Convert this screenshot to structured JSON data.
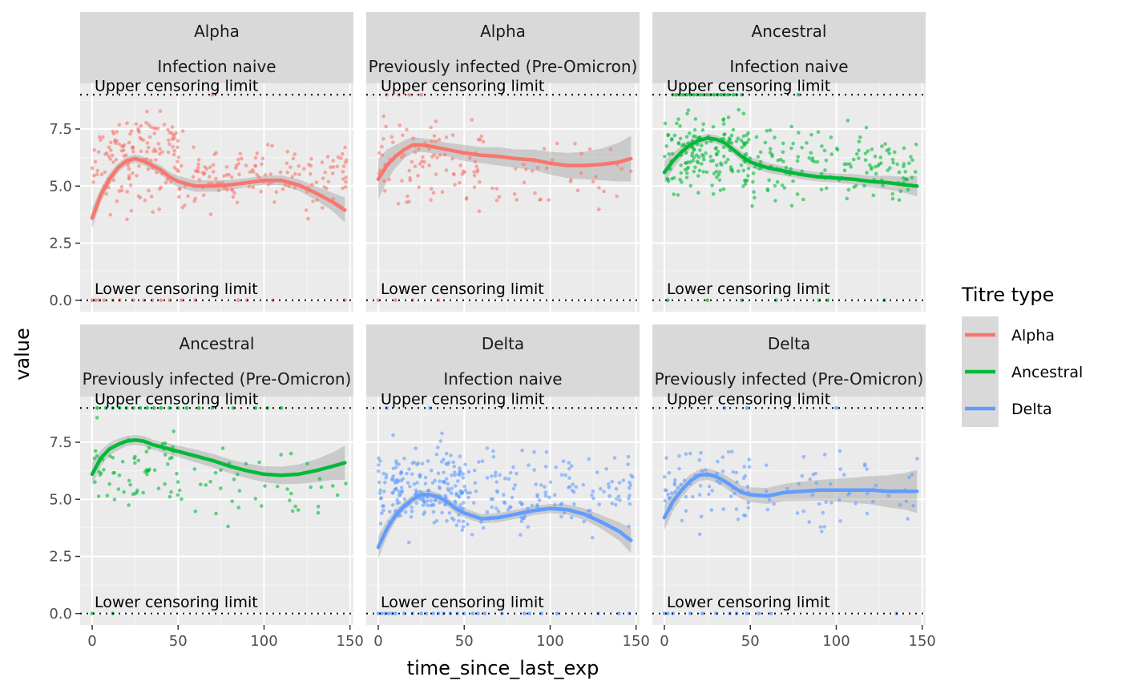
{
  "chart_data": {
    "type": "scatter",
    "x_label": "time_since_last_exp",
    "y_label": "value",
    "x_ticks": [
      0,
      50,
      100,
      150
    ],
    "y_ticks": [
      0.0,
      2.5,
      5.0,
      7.5
    ],
    "y_tick_labels": [
      "0.0",
      "2.5",
      "5.0",
      "7.5"
    ],
    "xlim": [
      -7,
      152
    ],
    "ylim": [
      -0.5,
      9.5
    ],
    "upper_limit": 9,
    "lower_limit": 0,
    "upper_label": "Upper censoring limit",
    "lower_label": "Lower censoring limit",
    "legend": {
      "title": "Titre type",
      "position": "right",
      "items": [
        {
          "name": "Alpha",
          "color": "#F8766D"
        },
        {
          "name": "Ancestral",
          "color": "#00BA38"
        },
        {
          "name": "Delta",
          "color": "#619CFF"
        }
      ]
    },
    "panels": [
      {
        "strip": [
          "Alpha",
          "Infection naive"
        ],
        "series": "Alpha",
        "color": "#F8766D",
        "smooth": [
          [
            0,
            3.6
          ],
          [
            5,
            4.6
          ],
          [
            10,
            5.3
          ],
          [
            15,
            5.8
          ],
          [
            20,
            6.1
          ],
          [
            25,
            6.2
          ],
          [
            30,
            6.1
          ],
          [
            35,
            5.9
          ],
          [
            40,
            5.7
          ],
          [
            45,
            5.4
          ],
          [
            50,
            5.2
          ],
          [
            60,
            5.0
          ],
          [
            70,
            5.0
          ],
          [
            80,
            5.05
          ],
          [
            90,
            5.15
          ],
          [
            100,
            5.25
          ],
          [
            110,
            5.25
          ],
          [
            120,
            5.05
          ],
          [
            130,
            4.7
          ],
          [
            140,
            4.3
          ],
          [
            147,
            3.95
          ]
        ],
        "ribbon": [
          0.45,
          0.3,
          0.25,
          0.2,
          0.18,
          0.18,
          0.18,
          0.18,
          0.2,
          0.22,
          0.25,
          0.25,
          0.25,
          0.22,
          0.2,
          0.2,
          0.22,
          0.25,
          0.3,
          0.4,
          0.55
        ],
        "points": [
          {
            "n": 110,
            "x": [
              0,
              55
            ],
            "y": [
              3.2,
              8.8
            ]
          },
          {
            "n": 140,
            "x": [
              50,
              148
            ],
            "y": [
              3.3,
              7.4
            ]
          },
          {
            "n": 40,
            "x": [
              10,
              50
            ],
            "y": [
              5.5,
              8.5
            ]
          }
        ],
        "censored_low_x": [
          0,
          2,
          4,
          7,
          12,
          16,
          24,
          30,
          35,
          40,
          45,
          52,
          60,
          85,
          90,
          105,
          147
        ],
        "censored_high_x": [
          70
        ]
      },
      {
        "strip": [
          "Alpha",
          "Previously infected (Pre-Omicron)"
        ],
        "series": "Alpha",
        "color": "#F8766D",
        "smooth": [
          [
            0,
            5.3
          ],
          [
            5,
            5.9
          ],
          [
            10,
            6.3
          ],
          [
            15,
            6.6
          ],
          [
            20,
            6.8
          ],
          [
            25,
            6.8
          ],
          [
            30,
            6.75
          ],
          [
            40,
            6.6
          ],
          [
            50,
            6.45
          ],
          [
            60,
            6.35
          ],
          [
            70,
            6.3
          ],
          [
            80,
            6.2
          ],
          [
            90,
            6.15
          ],
          [
            100,
            6.0
          ],
          [
            110,
            5.9
          ],
          [
            120,
            5.9
          ],
          [
            130,
            5.95
          ],
          [
            140,
            6.05
          ],
          [
            147,
            6.2
          ]
        ],
        "ribbon": [
          0.9,
          0.7,
          0.5,
          0.4,
          0.35,
          0.3,
          0.3,
          0.3,
          0.35,
          0.35,
          0.4,
          0.4,
          0.45,
          0.5,
          0.55,
          0.6,
          0.7,
          0.85,
          1.0
        ],
        "points": [
          {
            "n": 85,
            "x": [
              0,
              60
            ],
            "y": [
              3.0,
              8.9
            ]
          },
          {
            "n": 45,
            "x": [
              55,
              148
            ],
            "y": [
              3.2,
              7.8
            ]
          }
        ],
        "censored_low_x": [
          0,
          10,
          20,
          35
        ],
        "censored_high_x": [
          5,
          12,
          18,
          25
        ]
      },
      {
        "strip": [
          "Ancestral",
          "Infection naive"
        ],
        "series": "Ancestral",
        "color": "#00BA38",
        "smooth": [
          [
            0,
            5.6
          ],
          [
            5,
            6.1
          ],
          [
            10,
            6.5
          ],
          [
            15,
            6.8
          ],
          [
            20,
            7.0
          ],
          [
            25,
            7.1
          ],
          [
            30,
            7.05
          ],
          [
            35,
            6.9
          ],
          [
            40,
            6.6
          ],
          [
            45,
            6.3
          ],
          [
            50,
            6.05
          ],
          [
            60,
            5.8
          ],
          [
            70,
            5.65
          ],
          [
            80,
            5.5
          ],
          [
            90,
            5.4
          ],
          [
            100,
            5.35
          ],
          [
            110,
            5.3
          ],
          [
            120,
            5.2
          ],
          [
            130,
            5.15
          ],
          [
            140,
            5.05
          ],
          [
            147,
            5.0
          ]
        ],
        "ribbon": [
          0.5,
          0.35,
          0.25,
          0.2,
          0.18,
          0.18,
          0.18,
          0.2,
          0.2,
          0.22,
          0.22,
          0.22,
          0.2,
          0.2,
          0.2,
          0.2,
          0.22,
          0.25,
          0.3,
          0.35,
          0.45
        ],
        "points": [
          {
            "n": 170,
            "x": [
              0,
              50
            ],
            "y": [
              4.0,
              8.8
            ]
          },
          {
            "n": 150,
            "x": [
              50,
              148
            ],
            "y": [
              3.5,
              8.3
            ]
          }
        ],
        "censored_low_x": [
          2,
          25,
          45,
          65,
          90,
          95,
          128
        ],
        "censored_high_x": [
          5,
          7,
          9,
          11,
          13,
          15,
          17,
          19,
          21,
          23,
          25,
          27,
          29,
          31,
          33,
          35,
          37,
          40,
          42,
          45,
          78
        ]
      },
      {
        "strip": [
          "Ancestral",
          "Previously infected (Pre-Omicron)"
        ],
        "series": "Ancestral",
        "color": "#00BA38",
        "smooth": [
          [
            0,
            6.1
          ],
          [
            5,
            6.8
          ],
          [
            10,
            7.2
          ],
          [
            15,
            7.4
          ],
          [
            20,
            7.55
          ],
          [
            25,
            7.6
          ],
          [
            30,
            7.55
          ],
          [
            35,
            7.4
          ],
          [
            40,
            7.3
          ],
          [
            50,
            7.1
          ],
          [
            60,
            6.9
          ],
          [
            70,
            6.7
          ],
          [
            80,
            6.45
          ],
          [
            90,
            6.25
          ],
          [
            100,
            6.1
          ],
          [
            110,
            6.05
          ],
          [
            120,
            6.1
          ],
          [
            130,
            6.25
          ],
          [
            140,
            6.45
          ],
          [
            147,
            6.6
          ]
        ],
        "ribbon": [
          0.5,
          0.35,
          0.28,
          0.25,
          0.22,
          0.22,
          0.22,
          0.22,
          0.22,
          0.25,
          0.28,
          0.3,
          0.3,
          0.32,
          0.35,
          0.38,
          0.42,
          0.5,
          0.6,
          0.75
        ],
        "points": [
          {
            "n": 60,
            "x": [
              0,
              50
            ],
            "y": [
              4.3,
              8.8
            ]
          },
          {
            "n": 45,
            "x": [
              45,
              148
            ],
            "y": [
              3.3,
              8.4
            ]
          }
        ],
        "censored_low_x": [
          0,
          12
        ],
        "censored_high_x": [
          3,
          8,
          12,
          16,
          20,
          24,
          28,
          32,
          36,
          40,
          45,
          50,
          55,
          62,
          70,
          82,
          95,
          102,
          110
        ]
      },
      {
        "strip": [
          "Delta",
          "Infection naive"
        ],
        "series": "Delta",
        "color": "#619CFF",
        "smooth": [
          [
            0,
            2.9
          ],
          [
            5,
            3.7
          ],
          [
            10,
            4.3
          ],
          [
            15,
            4.7
          ],
          [
            20,
            5.0
          ],
          [
            25,
            5.2
          ],
          [
            30,
            5.2
          ],
          [
            35,
            5.1
          ],
          [
            40,
            4.9
          ],
          [
            45,
            4.6
          ],
          [
            50,
            4.4
          ],
          [
            60,
            4.15
          ],
          [
            70,
            4.2
          ],
          [
            80,
            4.35
          ],
          [
            90,
            4.5
          ],
          [
            100,
            4.6
          ],
          [
            110,
            4.55
          ],
          [
            120,
            4.35
          ],
          [
            130,
            4.0
          ],
          [
            140,
            3.6
          ],
          [
            147,
            3.2
          ]
        ],
        "ribbon": [
          0.5,
          0.35,
          0.25,
          0.2,
          0.18,
          0.18,
          0.18,
          0.18,
          0.2,
          0.2,
          0.2,
          0.2,
          0.2,
          0.2,
          0.2,
          0.2,
          0.22,
          0.25,
          0.3,
          0.4,
          0.55
        ],
        "points": [
          {
            "n": 190,
            "x": [
              0,
              50
            ],
            "y": [
              2.6,
              8.2
            ]
          },
          {
            "n": 150,
            "x": [
              45,
              148
            ],
            "y": [
              2.8,
              7.7
            ]
          }
        ],
        "censored_low_x": [
          0,
          2,
          4,
          6,
          8,
          10,
          15,
          20,
          25,
          28,
          32,
          35,
          38,
          42,
          46,
          50,
          55,
          58,
          62,
          72,
          85,
          88,
          95,
          104,
          128,
          140,
          146
        ],
        "censored_high_x": [
          5,
          30
        ]
      },
      {
        "strip": [
          "Delta",
          "Previously infected (Pre-Omicron)"
        ],
        "series": "Delta",
        "color": "#619CFF",
        "smooth": [
          [
            0,
            4.2
          ],
          [
            5,
            4.9
          ],
          [
            10,
            5.4
          ],
          [
            15,
            5.8
          ],
          [
            20,
            6.05
          ],
          [
            25,
            6.1
          ],
          [
            30,
            6.0
          ],
          [
            35,
            5.8
          ],
          [
            40,
            5.55
          ],
          [
            45,
            5.3
          ],
          [
            50,
            5.2
          ],
          [
            60,
            5.15
          ],
          [
            70,
            5.3
          ],
          [
            80,
            5.35
          ],
          [
            90,
            5.4
          ],
          [
            100,
            5.4
          ],
          [
            110,
            5.4
          ],
          [
            120,
            5.4
          ],
          [
            130,
            5.35
          ],
          [
            140,
            5.35
          ],
          [
            147,
            5.35
          ]
        ],
        "ribbon": [
          0.55,
          0.4,
          0.32,
          0.28,
          0.25,
          0.25,
          0.25,
          0.28,
          0.3,
          0.3,
          0.32,
          0.35,
          0.38,
          0.42,
          0.45,
          0.5,
          0.55,
          0.62,
          0.7,
          0.8,
          0.95
        ],
        "points": [
          {
            "n": 70,
            "x": [
              0,
              50
            ],
            "y": [
              3.2,
              8.4
            ]
          },
          {
            "n": 55,
            "x": [
              45,
              148
            ],
            "y": [
              3.0,
              7.8
            ]
          }
        ],
        "censored_low_x": [
          0,
          2,
          5,
          15,
          22,
          30,
          38,
          42,
          48,
          55,
          62,
          135
        ],
        "censored_high_x": [
          35,
          48,
          100
        ]
      }
    ]
  }
}
